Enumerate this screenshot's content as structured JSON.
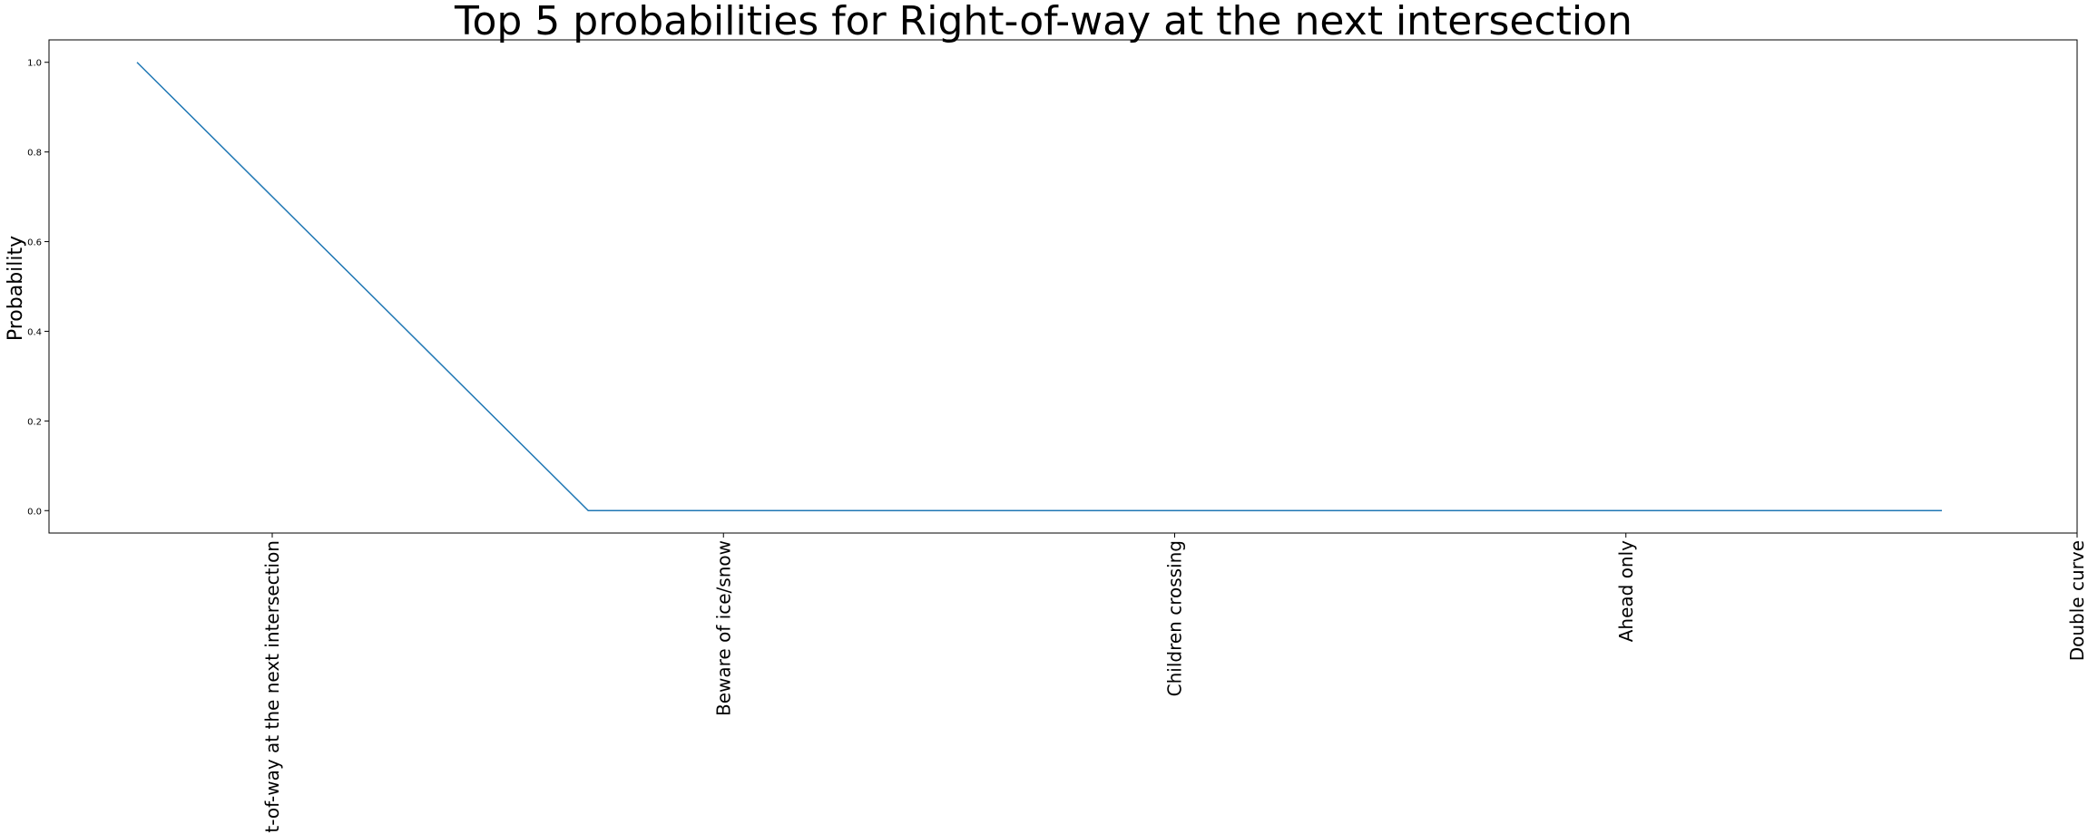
{
  "chart_data": {
    "type": "line",
    "title": "Top 5 probabilities for Right-of-way at the next intersection",
    "xlabel": "",
    "ylabel": "Probability",
    "categories": [
      "Right-of-way at the next intersection",
      "Beware of ice/snow",
      "Children crossing",
      "Ahead only",
      "Double curve"
    ],
    "series": [
      {
        "values": [
          1.0,
          0.0,
          0.0,
          0.0,
          0.0
        ],
        "color": "#1f77b4"
      }
    ],
    "yticks": [
      "0.0",
      "0.2",
      "0.4",
      "0.6",
      "0.8",
      "1.0"
    ],
    "ylim": [
      -0.05,
      1.05
    ],
    "grid": false
  }
}
